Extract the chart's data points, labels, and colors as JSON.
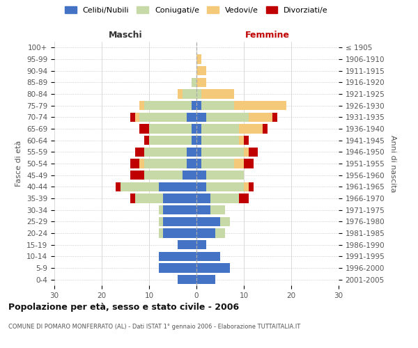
{
  "age_groups": [
    "0-4",
    "5-9",
    "10-14",
    "15-19",
    "20-24",
    "25-29",
    "30-34",
    "35-39",
    "40-44",
    "45-49",
    "50-54",
    "55-59",
    "60-64",
    "65-69",
    "70-74",
    "75-79",
    "80-84",
    "85-89",
    "90-94",
    "95-99",
    "100+"
  ],
  "birth_years": [
    "2001-2005",
    "1996-2000",
    "1991-1995",
    "1986-1990",
    "1981-1985",
    "1976-1980",
    "1971-1975",
    "1966-1970",
    "1961-1965",
    "1956-1960",
    "1951-1955",
    "1946-1950",
    "1941-1945",
    "1936-1940",
    "1931-1935",
    "1926-1930",
    "1921-1925",
    "1916-1920",
    "1911-1915",
    "1906-1910",
    "≤ 1905"
  ],
  "male": {
    "celibi": [
      4,
      8,
      8,
      4,
      7,
      7,
      7,
      7,
      8,
      3,
      2,
      2,
      1,
      1,
      2,
      1,
      0,
      0,
      0,
      0,
      0
    ],
    "coniugati": [
      0,
      0,
      0,
      0,
      1,
      1,
      1,
      6,
      8,
      8,
      9,
      9,
      9,
      9,
      10,
      10,
      3,
      1,
      0,
      0,
      0
    ],
    "vedovi": [
      0,
      0,
      0,
      0,
      0,
      0,
      0,
      0,
      0,
      0,
      1,
      0,
      0,
      0,
      1,
      1,
      1,
      0,
      0,
      0,
      0
    ],
    "divorziati": [
      0,
      0,
      0,
      0,
      0,
      0,
      0,
      1,
      1,
      3,
      2,
      2,
      1,
      2,
      1,
      0,
      0,
      0,
      0,
      0,
      0
    ]
  },
  "female": {
    "nubili": [
      4,
      7,
      5,
      2,
      4,
      5,
      3,
      3,
      2,
      2,
      1,
      1,
      1,
      1,
      2,
      1,
      0,
      0,
      0,
      0,
      0
    ],
    "coniugate": [
      0,
      0,
      0,
      0,
      2,
      2,
      3,
      6,
      8,
      8,
      7,
      9,
      8,
      8,
      9,
      7,
      1,
      0,
      0,
      0,
      0
    ],
    "vedove": [
      0,
      0,
      0,
      0,
      0,
      0,
      0,
      0,
      1,
      0,
      2,
      1,
      1,
      5,
      5,
      11,
      7,
      2,
      2,
      1,
      0
    ],
    "divorziate": [
      0,
      0,
      0,
      0,
      0,
      0,
      0,
      2,
      1,
      0,
      2,
      2,
      1,
      1,
      1,
      0,
      0,
      0,
      0,
      0,
      0
    ]
  },
  "color_celibi": "#4472C4",
  "color_coniugati": "#c8d9a8",
  "color_vedovi": "#f5c97a",
  "color_divorziati": "#c00000",
  "title": "Popolazione per età, sesso e stato civile - 2006",
  "subtitle": "COMUNE DI POMARO MONFERRATO (AL) - Dati ISTAT 1° gennaio 2006 - Elaborazione TUTTAITALIA.IT",
  "xlabel_left": "Maschi",
  "xlabel_right": "Femmine",
  "ylabel_left": "Fasce di età",
  "ylabel_right": "Anni di nascita",
  "xlim": 30,
  "legend_labels": [
    "Celibi/Nubili",
    "Coniugati/e",
    "Vedovi/e",
    "Divorziati/e"
  ],
  "bg_color": "#ffffff",
  "grid_color": "#cccccc"
}
